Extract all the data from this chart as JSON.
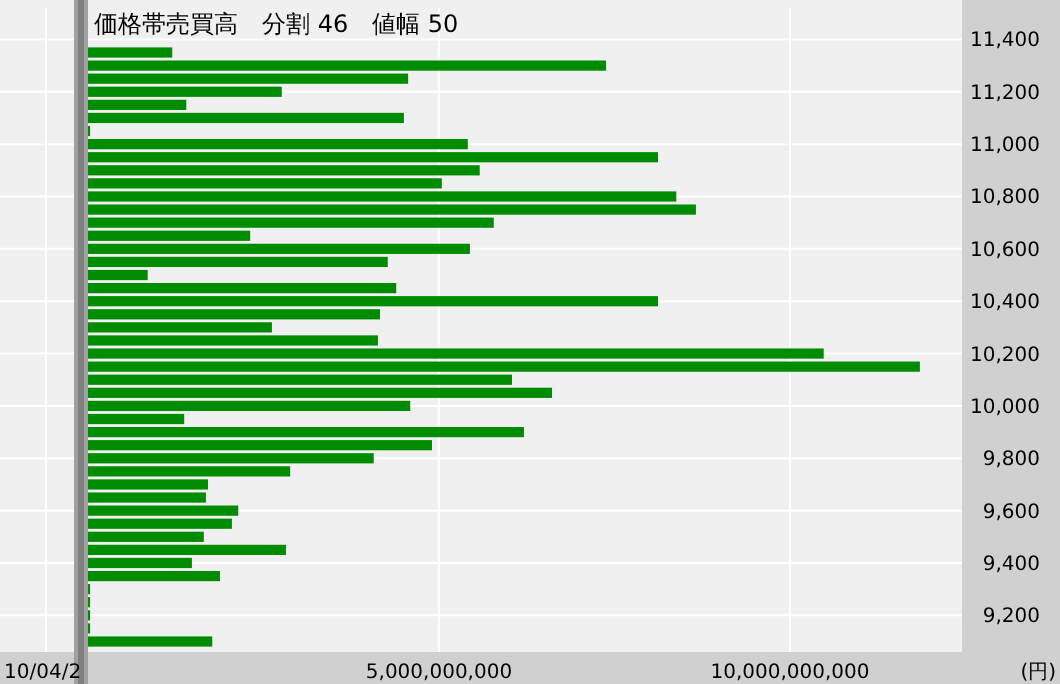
{
  "chart_data": {
    "type": "bar",
    "orientation": "horizontal",
    "title": "価格帯売買高　分割 46　値幅 50",
    "ylabel": "(円)",
    "annotations": [
      "10/04/2"
    ],
    "x": [
      11350,
      11300,
      11250,
      11200,
      11150,
      11100,
      11050,
      11000,
      10950,
      10900,
      10850,
      10800,
      10750,
      10700,
      10650,
      10600,
      10550,
      10500,
      10450,
      10400,
      10350,
      10300,
      10250,
      10200,
      10150,
      10100,
      10050,
      10000,
      9950,
      9900,
      9850,
      9800,
      9750,
      9700,
      9650,
      9600,
      9550,
      9500,
      9450,
      9400,
      9350,
      9300,
      9250,
      9200,
      9150,
      9100
    ],
    "values": [
      1200000000,
      7380000000,
      4560000000,
      2760000000,
      1400000000,
      4500000000,
      30000000,
      5410000000,
      8120000000,
      5580000000,
      5040000000,
      8380000000,
      8660000000,
      5780000000,
      2310000000,
      5440000000,
      4270000000,
      850000000,
      4390000000,
      8120000000,
      4160000000,
      2620000000,
      4130000000,
      10480000000,
      11850000000,
      6040000000,
      6610000000,
      4590000000,
      1370000000,
      6210000000,
      4900000000,
      4070000000,
      2880000000,
      1710000000,
      1680000000,
      2140000000,
      2050000000,
      1650000000,
      2820000000,
      1480000000,
      1880000000,
      30000000,
      30000000,
      30000000,
      30000000,
      1770000000
    ],
    "color": "#008c00",
    "xlim": [
      0,
      12450000000
    ],
    "xticks": [
      {
        "value": 5000000000,
        "label": "5,000,000,000"
      },
      {
        "value": 10000000000,
        "label": "10,000,000,000"
      }
    ],
    "ylim": [
      9060,
      11520
    ],
    "yticks": [
      {
        "value": 9200,
        "label": "9,200"
      },
      {
        "value": 9400,
        "label": "9,400"
      },
      {
        "value": 9600,
        "label": "9,600"
      },
      {
        "value": 9800,
        "label": "9,800"
      },
      {
        "value": 10000,
        "label": "10,000"
      },
      {
        "value": 10200,
        "label": "10,200"
      },
      {
        "value": 10400,
        "label": "10,400"
      },
      {
        "value": 10600,
        "label": "10,600"
      },
      {
        "value": 10800,
        "label": "10,800"
      },
      {
        "value": 11000,
        "label": "11,000"
      },
      {
        "value": 11200,
        "label": "11,200"
      },
      {
        "value": 11400,
        "label": "11,400"
      }
    ],
    "grid": true
  }
}
